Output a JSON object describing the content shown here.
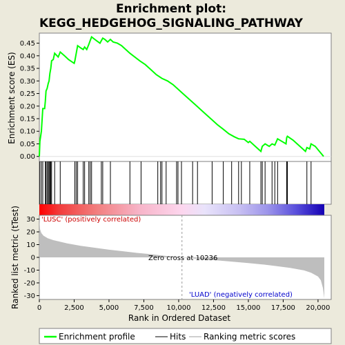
{
  "chart_data": {
    "type": "line",
    "title_line1": "Enrichment plot:",
    "title_line2": "KEGG_HEDGEHOG_SIGNALING_PATHWAY",
    "x_axis_label": "Rank in Ordered Dataset",
    "x_ticks": [
      0,
      2500,
      5000,
      7500,
      10000,
      12500,
      15000,
      17500,
      20000
    ],
    "x_tick_labels": [
      "0",
      "2,500",
      "5,000",
      "7,500",
      "10,000",
      "12,500",
      "15,000",
      "17,500",
      "20,000"
    ],
    "xlim": [
      0,
      20450
    ],
    "es_plot": {
      "ylabel": "Enrichment score (ES)",
      "ylim": [
        -0.02,
        0.49
      ],
      "y_ticks": [
        0.0,
        0.05,
        0.1,
        0.15,
        0.2,
        0.25,
        0.3,
        0.35,
        0.4,
        0.45
      ],
      "y_tick_labels": [
        "0.00",
        "0.05",
        "0.10",
        "0.15",
        "0.20",
        "0.25",
        "0.30",
        "0.35",
        "0.40",
        "0.45"
      ],
      "series_color": "#00FF00",
      "profile": [
        [
          0,
          0.0
        ],
        [
          40,
          0.06
        ],
        [
          150,
          0.1
        ],
        [
          250,
          0.19
        ],
        [
          380,
          0.19
        ],
        [
          430,
          0.22
        ],
        [
          480,
          0.26
        ],
        [
          560,
          0.27
        ],
        [
          640,
          0.29
        ],
        [
          700,
          0.3
        ],
        [
          760,
          0.33
        ],
        [
          820,
          0.35
        ],
        [
          880,
          0.38
        ],
        [
          1000,
          0.385
        ],
        [
          1100,
          0.41
        ],
        [
          1350,
          0.395
        ],
        [
          1500,
          0.415
        ],
        [
          1800,
          0.4
        ],
        [
          2100,
          0.385
        ],
        [
          2500,
          0.37
        ],
        [
          2550,
          0.38
        ],
        [
          2650,
          0.41
        ],
        [
          2750,
          0.44
        ],
        [
          3000,
          0.43
        ],
        [
          3150,
          0.425
        ],
        [
          3250,
          0.435
        ],
        [
          3400,
          0.425
        ],
        [
          3550,
          0.445
        ],
        [
          3650,
          0.46
        ],
        [
          3750,
          0.475
        ],
        [
          4100,
          0.46
        ],
        [
          4350,
          0.45
        ],
        [
          4450,
          0.46
        ],
        [
          4550,
          0.47
        ],
        [
          4700,
          0.465
        ],
        [
          4900,
          0.455
        ],
        [
          5100,
          0.465
        ],
        [
          5300,
          0.455
        ],
        [
          5600,
          0.45
        ],
        [
          5900,
          0.44
        ],
        [
          6500,
          0.41
        ],
        [
          7200,
          0.38
        ],
        [
          7600,
          0.365
        ],
        [
          8000,
          0.345
        ],
        [
          8400,
          0.325
        ],
        [
          8800,
          0.31
        ],
        [
          9200,
          0.3
        ],
        [
          9600,
          0.285
        ],
        [
          10000,
          0.265
        ],
        [
          10400,
          0.245
        ],
        [
          10800,
          0.225
        ],
        [
          11200,
          0.205
        ],
        [
          11600,
          0.185
        ],
        [
          12000,
          0.165
        ],
        [
          12400,
          0.145
        ],
        [
          12800,
          0.125
        ],
        [
          13200,
          0.108
        ],
        [
          13600,
          0.09
        ],
        [
          14000,
          0.078
        ],
        [
          14300,
          0.07
        ],
        [
          14700,
          0.068
        ],
        [
          15000,
          0.055
        ],
        [
          15100,
          0.06
        ],
        [
          15500,
          0.04
        ],
        [
          15900,
          0.02
        ],
        [
          16000,
          0.04
        ],
        [
          16200,
          0.05
        ],
        [
          16500,
          0.04
        ],
        [
          16700,
          0.05
        ],
        [
          16900,
          0.045
        ],
        [
          17100,
          0.07
        ],
        [
          17400,
          0.06
        ],
        [
          17700,
          0.05
        ],
        [
          17750,
          0.075
        ],
        [
          17800,
          0.08
        ],
        [
          18200,
          0.065
        ],
        [
          18700,
          0.04
        ],
        [
          19100,
          0.02
        ],
        [
          19200,
          0.035
        ],
        [
          19400,
          0.03
        ],
        [
          19500,
          0.05
        ],
        [
          19800,
          0.04
        ],
        [
          20100,
          0.02
        ],
        [
          20400,
          0.0
        ]
      ],
      "hits": [
        40,
        150,
        250,
        430,
        480,
        560,
        640,
        700,
        760,
        820,
        880,
        1100,
        1500,
        2550,
        2650,
        2750,
        3150,
        3250,
        3550,
        3650,
        3750,
        4450,
        4550,
        5100,
        6500,
        7300,
        8500,
        8700,
        8800,
        9100,
        9850,
        9950,
        10200,
        11000,
        11350,
        12400,
        13200,
        13800,
        14300,
        14500,
        15100,
        15900,
        16000,
        16200,
        16700,
        16900,
        17100,
        17750,
        17800,
        19200,
        19500
      ]
    },
    "metric_plot": {
      "ylabel": "Ranked list metric (tTest)",
      "ylim": [
        -33,
        33
      ],
      "y_ticks": [
        30,
        20,
        10,
        0,
        -10,
        -20,
        -30
      ],
      "y_tick_labels": [
        "30",
        "20",
        "10",
        "0",
        "-10",
        "-20",
        "-30"
      ],
      "zero_cross_label": "Zero cross at 10236",
      "zero_cross": 10236,
      "positive_label": "'LUSC' (positively correlated)",
      "negative_label": "'LUAD' (negatively correlated)",
      "profile": [
        [
          0,
          30
        ],
        [
          50,
          22
        ],
        [
          150,
          19
        ],
        [
          300,
          17
        ],
        [
          600,
          15
        ],
        [
          1000,
          13.5
        ],
        [
          2000,
          11
        ],
        [
          3000,
          9
        ],
        [
          4000,
          7.5
        ],
        [
          5000,
          6
        ],
        [
          6000,
          4.8
        ],
        [
          7000,
          3.5
        ],
        [
          8000,
          2.5
        ],
        [
          9000,
          1.2
        ],
        [
          10236,
          0
        ],
        [
          11000,
          -0.8
        ],
        [
          12000,
          -1.8
        ],
        [
          13000,
          -2.6
        ],
        [
          14000,
          -3.5
        ],
        [
          15000,
          -4.5
        ],
        [
          16000,
          -5.5
        ],
        [
          17000,
          -6.8
        ],
        [
          18000,
          -8.2
        ],
        [
          19000,
          -10.2
        ],
        [
          19500,
          -12
        ],
        [
          20000,
          -15
        ],
        [
          20200,
          -18
        ],
        [
          20350,
          -24
        ],
        [
          20450,
          -32
        ]
      ]
    },
    "legend": [
      {
        "label": "Enrichment profile",
        "color": "#00FF00"
      },
      {
        "label": "Hits",
        "color": "#000000"
      },
      {
        "label": "Ranking metric scores",
        "color": "#BEBEBE"
      }
    ]
  }
}
